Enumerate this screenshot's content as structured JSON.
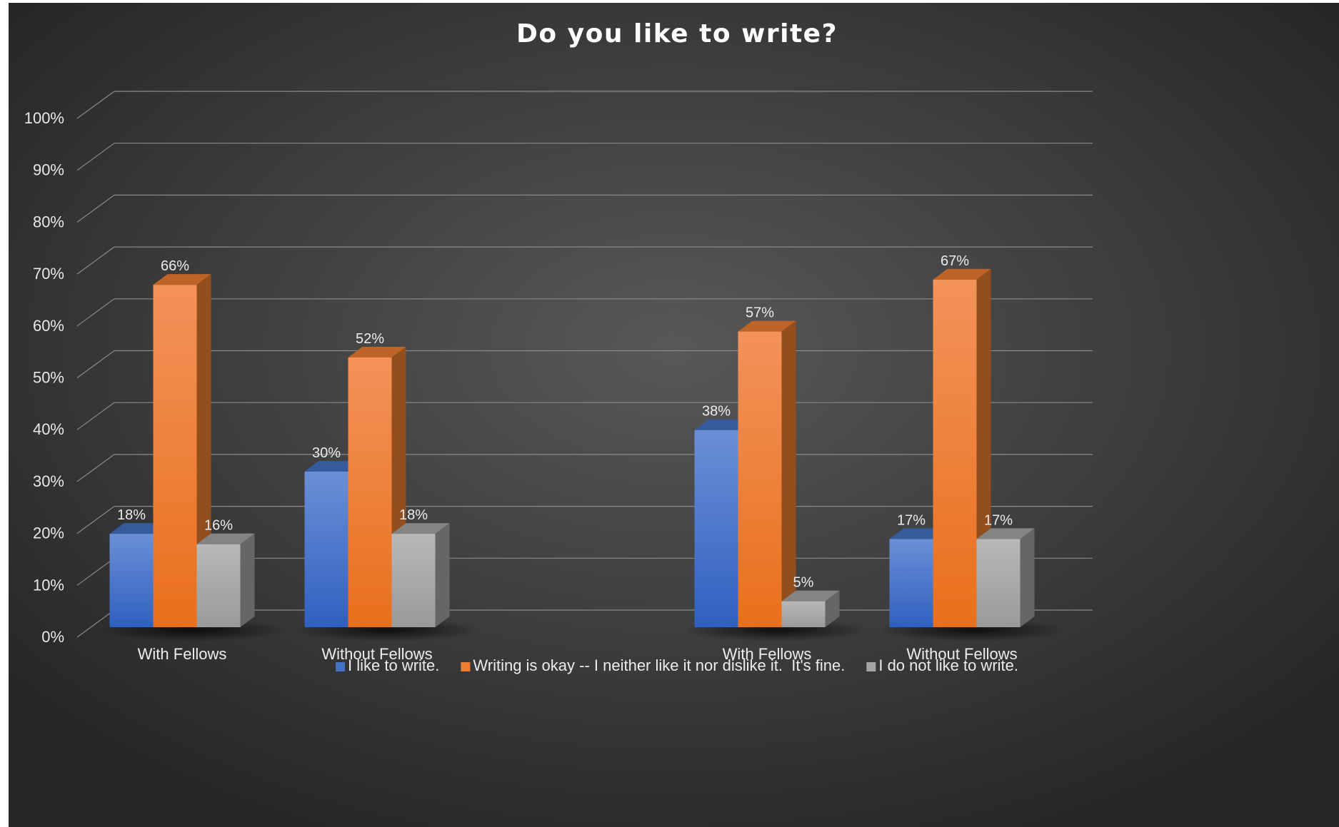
{
  "chart_data": {
    "type": "bar",
    "title": "Do you like to write?",
    "xlabel": "",
    "ylabel": "",
    "ylim": [
      0,
      100
    ],
    "yticks": [
      "0%",
      "10%",
      "20%",
      "30%",
      "40%",
      "50%",
      "60%",
      "70%",
      "80%",
      "90%",
      "100%"
    ],
    "categories": [
      "With Fellows",
      "Without Fellows",
      "",
      "With Fellows",
      "Without Fellows"
    ],
    "series": [
      {
        "name": "I like to write.",
        "values": [
          18,
          30,
          null,
          38,
          17
        ],
        "labels": [
          "18%",
          "30%",
          "",
          "38%",
          "17%"
        ]
      },
      {
        "name": "Writing is okay -- I neither like it nor dislike it.  It's fine.",
        "values": [
          66,
          52,
          null,
          57,
          67
        ],
        "labels": [
          "66%",
          "52%",
          "",
          "57%",
          "67%"
        ]
      },
      {
        "name": "I do not like to write.",
        "values": [
          16,
          18,
          null,
          5,
          17
        ],
        "labels": [
          "16%",
          "18%",
          "",
          "5%",
          "17%"
        ]
      }
    ],
    "grid": true,
    "legend": "bottom",
    "colors": {
      "background": "#3a3a3a",
      "series": [
        "#4472c4",
        "#ed7d31",
        "#a5a5a5"
      ],
      "gridline": "#8a8a8a"
    }
  }
}
